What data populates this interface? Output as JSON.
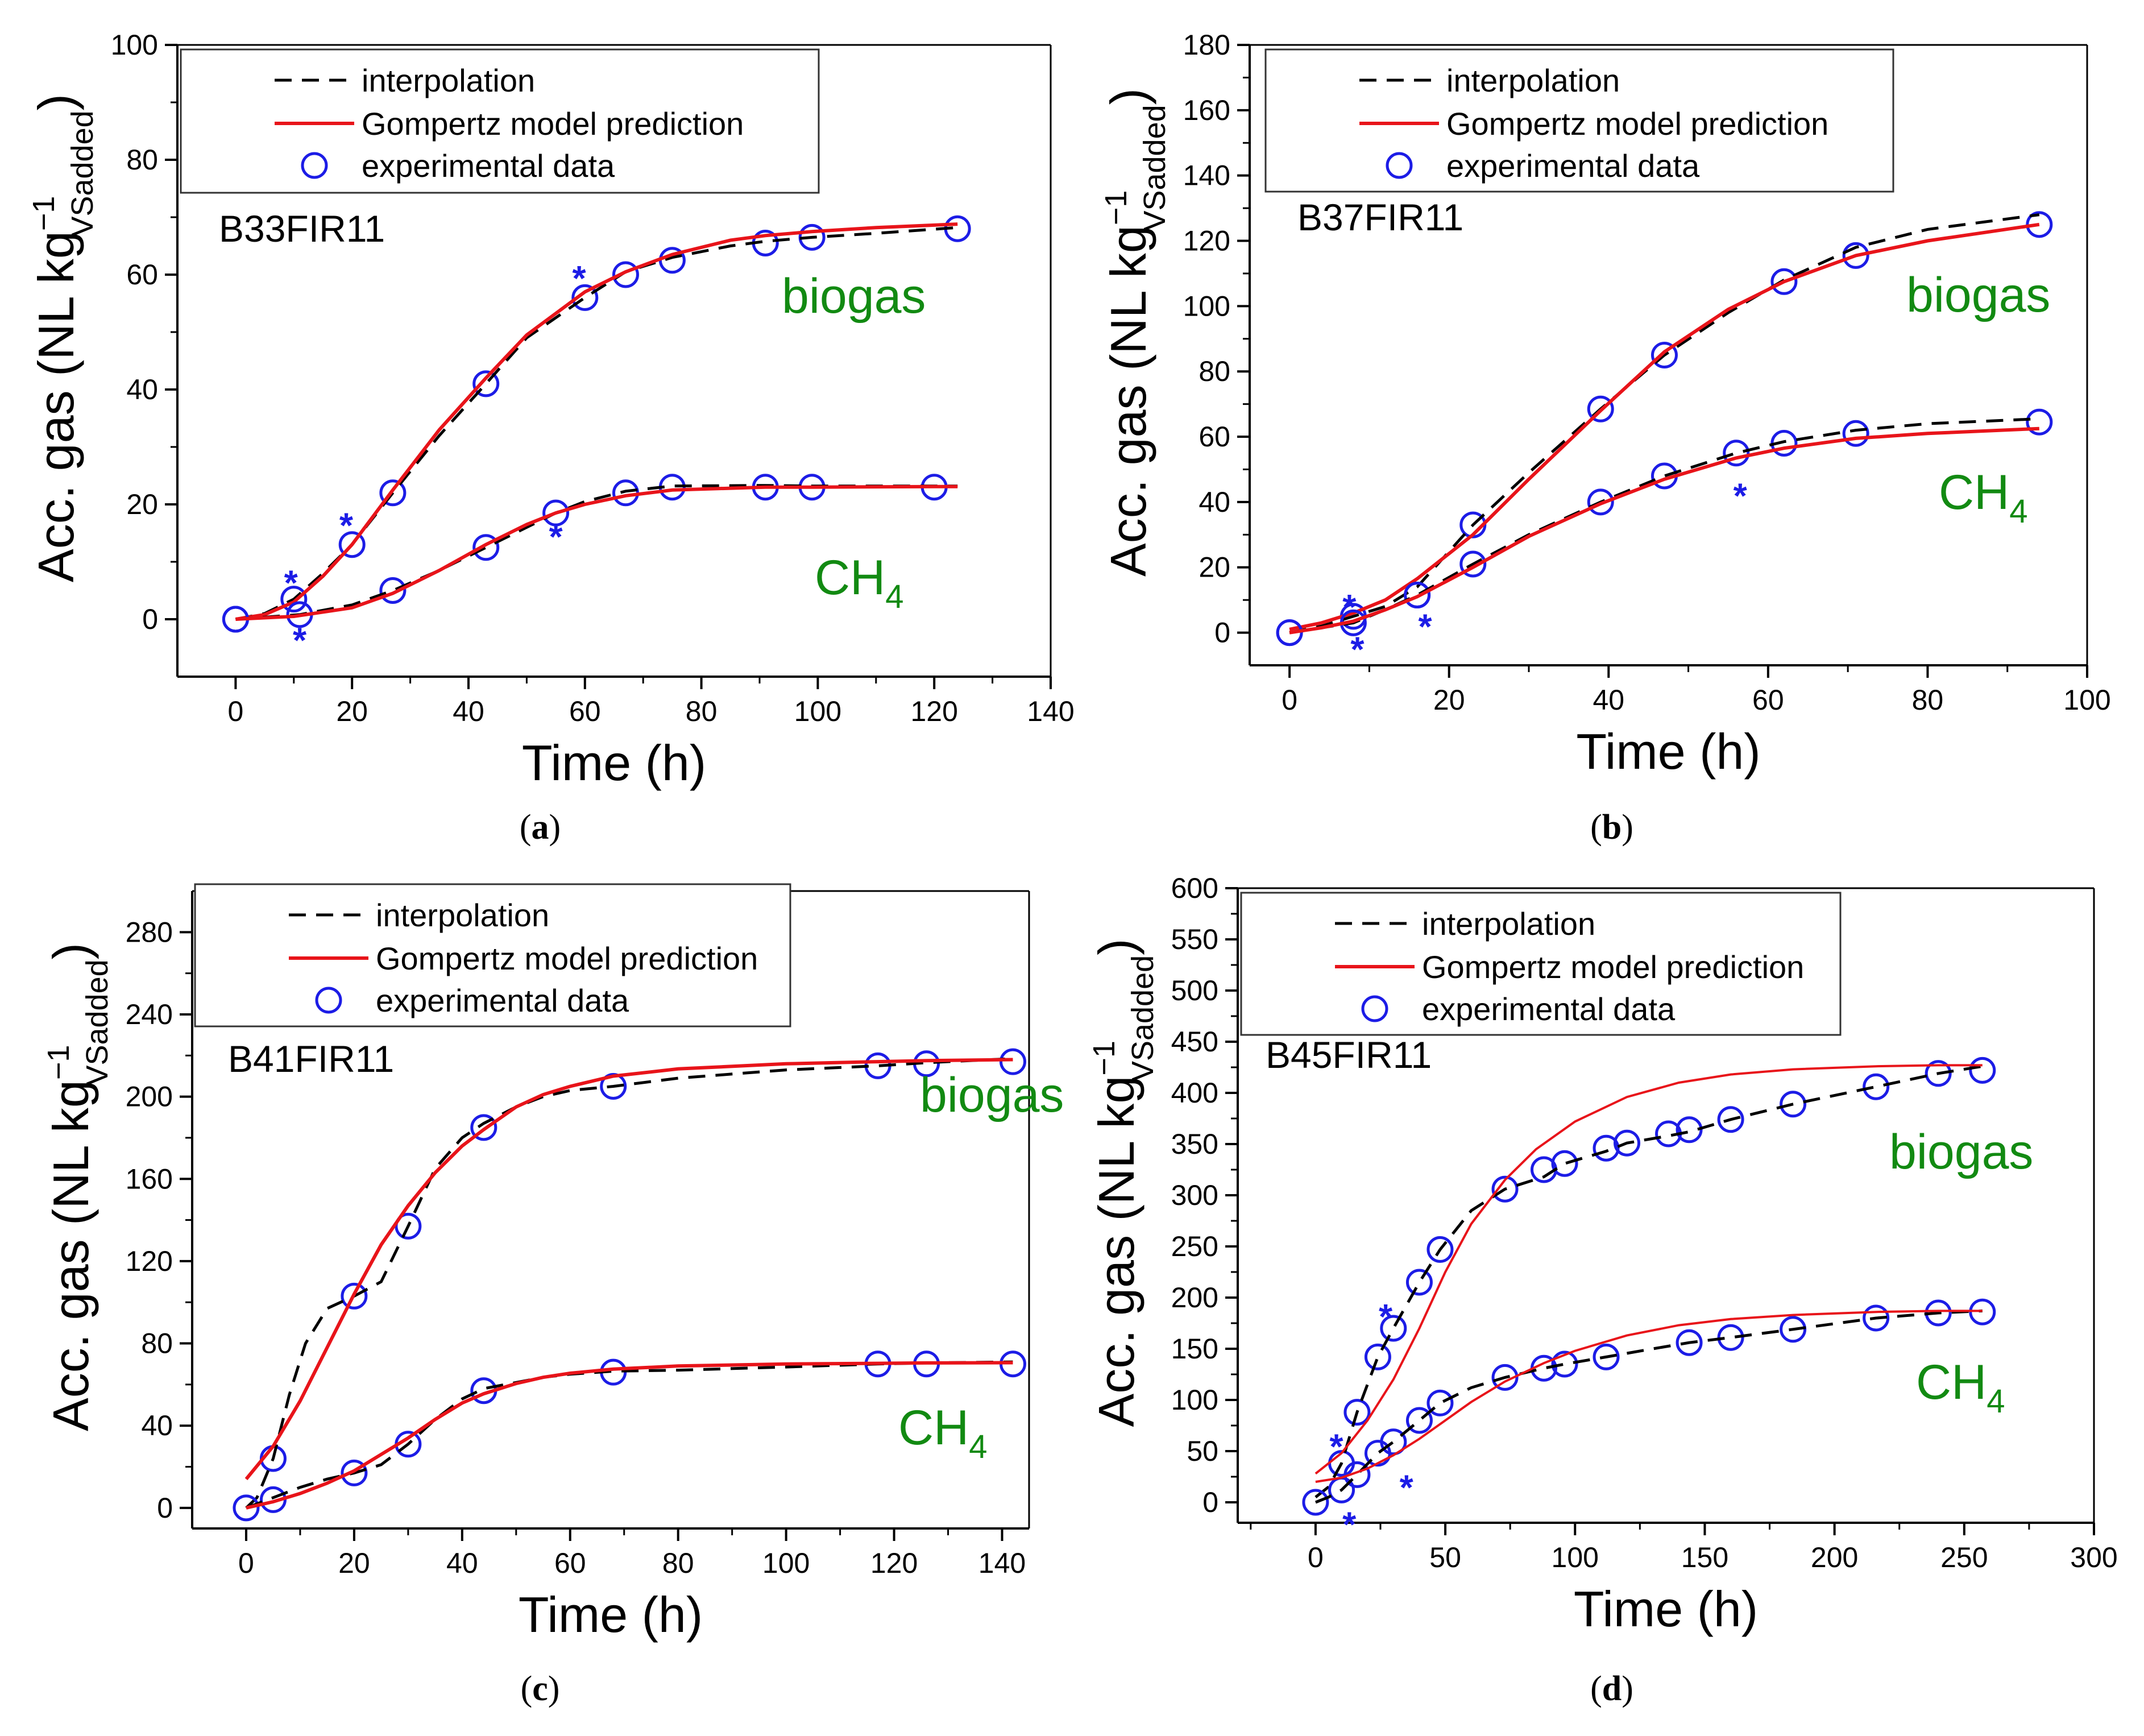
{
  "chart_data": [
    {
      "type": "line",
      "panel": "(a)",
      "panel_letter": "a",
      "sample": "B33FIR11",
      "xlabel": "Time (h)",
      "ylabel": "Acc. gas (NL kg",
      "ylabel_sup": "−1",
      "ylabel_sub": "VSadded",
      "xlim": [
        -10,
        140
      ],
      "ylim": [
        -10,
        100
      ],
      "xticks": [
        0,
        20,
        40,
        60,
        80,
        100,
        120,
        140
      ],
      "yticks": [
        0,
        20,
        40,
        60,
        80,
        100
      ],
      "legend": [
        "interpolation",
        "Gompertz model prediction",
        "experimental data"
      ],
      "annotations": {
        "biogas": "biogas",
        "ch4": "CH",
        "ch4_sub": "4"
      },
      "star_symbol": "*",
      "series": [
        {
          "name": "biogas experimental data",
          "x": [
            0,
            10,
            20,
            27,
            43,
            60,
            67,
            75,
            91,
            99,
            124
          ],
          "y": [
            0,
            3.5,
            13,
            22,
            41,
            56,
            60,
            62.5,
            65.5,
            66.5,
            68
          ]
        },
        {
          "name": "biogas interpolation",
          "x": [
            0,
            5,
            10,
            15,
            20,
            27,
            35,
            43,
            50,
            60,
            67,
            75,
            85,
            91,
            99,
            110,
            124
          ],
          "y": [
            0,
            1,
            3.5,
            8,
            13,
            22,
            32,
            41,
            49,
            56,
            60.5,
            63,
            65,
            65.8,
            66.5,
            67.2,
            68.2
          ]
        },
        {
          "name": "biogas Gompertz",
          "x": [
            0,
            5,
            10,
            15,
            20,
            27,
            35,
            43,
            50,
            60,
            67,
            75,
            85,
            91,
            99,
            110,
            124
          ],
          "y": [
            0,
            0.8,
            3,
            7.5,
            13,
            22.5,
            33,
            42,
            49.5,
            57,
            60.5,
            63.5,
            66,
            66.8,
            67.5,
            68.2,
            68.8
          ]
        },
        {
          "name": "CH4 experimental data",
          "x": [
            0,
            11,
            27,
            43,
            55,
            67,
            75,
            91,
            99,
            120
          ],
          "y": [
            0,
            0.8,
            5,
            12.5,
            18.5,
            22,
            23,
            23,
            23,
            23
          ]
        },
        {
          "name": "CH4 interpolation",
          "x": [
            0,
            11,
            20,
            27,
            35,
            43,
            50,
            55,
            60,
            67,
            75,
            91,
            99,
            120,
            124
          ],
          "y": [
            0,
            0.8,
            2.5,
            5,
            8.5,
            12.5,
            16,
            18.5,
            20.5,
            22.3,
            23.2,
            23.3,
            23.2,
            23.2,
            23.2
          ]
        },
        {
          "name": "CH4 Gompertz",
          "x": [
            0,
            10,
            20,
            27,
            35,
            43,
            50,
            55,
            60,
            67,
            75,
            91,
            99,
            120,
            124
          ],
          "y": [
            0,
            0.5,
            2,
            4.5,
            8.5,
            13,
            16.5,
            18.5,
            20,
            21.5,
            22.5,
            23,
            23,
            23.1,
            23.1
          ]
        }
      ],
      "stars": [
        {
          "x": 9.5,
          "y": 7
        },
        {
          "x": 11,
          "y": -3
        },
        {
          "x": 19,
          "y": 17
        },
        {
          "x": 59,
          "y": 60
        },
        {
          "x": 55,
          "y": 15
        }
      ]
    },
    {
      "type": "line",
      "panel": "(b)",
      "panel_letter": "b",
      "sample": "B37FIR11",
      "xlabel": "Time (h)",
      "ylabel": "Acc. gas (NL kg",
      "ylabel_sup": "−1",
      "ylabel_sub": "VSadded",
      "xlim": [
        -5,
        100
      ],
      "ylim": [
        -10,
        180
      ],
      "xticks": [
        0,
        20,
        40,
        60,
        80,
        100
      ],
      "yticks": [
        0,
        20,
        40,
        60,
        80,
        100,
        120,
        140,
        160,
        180
      ],
      "legend": [
        "interpolation",
        "Gompertz model prediction",
        "experimental data"
      ],
      "annotations": {
        "biogas": "biogas",
        "ch4": "CH",
        "ch4_sub": "4"
      },
      "star_symbol": "*",
      "series": [
        {
          "name": "biogas experimental data",
          "x": [
            0,
            8,
            16,
            23,
            39,
            47,
            62,
            71,
            94
          ],
          "y": [
            0,
            5,
            11.5,
            33,
            68.5,
            85,
            107.5,
            115.5,
            125
          ]
        },
        {
          "name": "biogas interpolation",
          "x": [
            0,
            4,
            8,
            12,
            16,
            23,
            30,
            39,
            47,
            55,
            62,
            71,
            80,
            94
          ],
          "y": [
            0,
            2,
            5,
            8,
            14,
            33,
            49,
            68.5,
            85,
            98,
            108,
            118,
            123.5,
            128
          ]
        },
        {
          "name": "biogas Gompertz",
          "x": [
            0,
            4,
            8,
            12,
            16,
            23,
            30,
            39,
            47,
            55,
            62,
            71,
            80,
            94
          ],
          "y": [
            1,
            3,
            6,
            10,
            16.5,
            30,
            47,
            68,
            86,
            99,
            107.5,
            115.5,
            120,
            125
          ]
        },
        {
          "name": "CH4 experimental data",
          "x": [
            0,
            8,
            16,
            23,
            39,
            47,
            56,
            62,
            71,
            94
          ],
          "y": [
            0,
            3,
            11.5,
            21,
            40,
            48,
            55,
            58,
            61,
            64.5
          ]
        },
        {
          "name": "CH4 interpolation",
          "x": [
            0,
            4,
            8,
            12,
            16,
            23,
            30,
            39,
            47,
            56,
            62,
            71,
            80,
            94
          ],
          "y": [
            0,
            1.5,
            3,
            7,
            11.5,
            21,
            30,
            40,
            48,
            55,
            58.5,
            62,
            64,
            65.5
          ]
        },
        {
          "name": "CH4 Gompertz",
          "x": [
            0,
            4,
            8,
            12,
            16,
            23,
            30,
            39,
            47,
            56,
            62,
            71,
            80,
            94
          ],
          "y": [
            0,
            1.5,
            3.5,
            7,
            11,
            20,
            29.5,
            39.5,
            47,
            53.5,
            56.5,
            59.5,
            61,
            62.5
          ]
        }
      ],
      "stars": [
        {
          "x": 7.5,
          "y": 9
        },
        {
          "x": 8.5,
          "y": -4
        },
        {
          "x": 17,
          "y": 3
        },
        {
          "x": 56.5,
          "y": 43
        }
      ]
    },
    {
      "type": "line",
      "panel": "(c)",
      "panel_letter": "c",
      "sample": "B41FIR11",
      "xlabel": "Time (h)",
      "ylabel": "Acc. gas (NL kg",
      "ylabel_sup": "−1",
      "ylabel_sub": "VSadded",
      "xlim": [
        -10,
        145
      ],
      "ylim": [
        -10,
        300
      ],
      "xticks": [
        0,
        20,
        40,
        60,
        80,
        100,
        120,
        140
      ],
      "yticks": [
        0,
        40,
        80,
        120,
        160,
        200,
        240,
        280
      ],
      "legend": [
        "interpolation",
        "Gompertz model prediction",
        "experimental data"
      ],
      "annotations": {
        "biogas": "biogas",
        "ch4": "CH",
        "ch4_sub": "4"
      },
      "star_symbol": "*",
      "series": [
        {
          "name": "biogas experimental data",
          "x": [
            5,
            20,
            30,
            44,
            68,
            117,
            126,
            142
          ],
          "y": [
            24,
            103,
            137,
            185,
            205,
            215,
            216,
            217
          ]
        },
        {
          "name": "biogas interpolation",
          "x": [
            0,
            2,
            5,
            8,
            11,
            15,
            20,
            25,
            30,
            35,
            40,
            44,
            50,
            55,
            60,
            68,
            80,
            100,
            117,
            126,
            142
          ],
          "y": [
            0,
            5,
            24,
            55,
            80,
            97,
            103,
            110,
            137,
            165,
            180,
            187,
            195,
            200,
            203,
            205,
            209,
            213,
            215,
            216.5,
            218.5
          ]
        },
        {
          "name": "biogas Gompertz",
          "x": [
            0,
            5,
            10,
            15,
            20,
            25,
            30,
            35,
            40,
            44,
            50,
            55,
            60,
            68,
            80,
            100,
            117,
            126,
            142
          ],
          "y": [
            14,
            30,
            52,
            78,
            104,
            128,
            147,
            163,
            176,
            184,
            195,
            201,
            205,
            210,
            213.5,
            216,
            217,
            217.5,
            218
          ]
        },
        {
          "name": "CH4 experimental data",
          "x": [
            0,
            5,
            20,
            30,
            44,
            68,
            117,
            126,
            142
          ],
          "y": [
            0,
            4,
            17,
            31,
            57,
            66,
            70,
            70,
            70
          ]
        },
        {
          "name": "CH4 interpolation",
          "x": [
            0,
            5,
            10,
            15,
            20,
            25,
            30,
            35,
            40,
            44,
            50,
            55,
            60,
            68,
            80,
            100,
            117,
            126,
            142
          ],
          "y": [
            0,
            5,
            10,
            14,
            17,
            21,
            31,
            43,
            53,
            58,
            61,
            63.5,
            65,
            66.5,
            67,
            68.5,
            70,
            70.5,
            71
          ]
        },
        {
          "name": "CH4 Gompertz",
          "x": [
            0,
            5,
            10,
            15,
            20,
            25,
            30,
            35,
            40,
            44,
            50,
            55,
            60,
            68,
            80,
            100,
            117,
            126,
            142
          ],
          "y": [
            0,
            3,
            7,
            12,
            18,
            26,
            34,
            43,
            51,
            55.5,
            60.5,
            63.5,
            65.5,
            67.5,
            69,
            70,
            70.3,
            70.5,
            70.6
          ]
        }
      ],
      "stars": []
    },
    {
      "type": "line",
      "panel": "(d)",
      "panel_letter": "d",
      "sample": "B45FIR11",
      "xlabel": "Time (h)",
      "ylabel": "Acc. gas (NL kg",
      "ylabel_sup": "−1",
      "ylabel_sub": "VSadded",
      "xlim": [
        -30,
        300
      ],
      "ylim": [
        -20,
        600
      ],
      "xticks": [
        0,
        50,
        100,
        150,
        200,
        250,
        300
      ],
      "yticks": [
        0,
        50,
        100,
        150,
        200,
        250,
        300,
        350,
        400,
        450,
        500,
        550,
        600
      ],
      "legend": [
        "interpolation",
        "Gompertz model prediction",
        "experimental data"
      ],
      "annotations": {
        "biogas": "biogas",
        "ch4": "CH",
        "ch4_sub": "4"
      },
      "star_symbol": "*",
      "series": [
        {
          "name": "biogas experimental data",
          "x": [
            10,
            16,
            24,
            30,
            40,
            48,
            73,
            88,
            96,
            112,
            120,
            136,
            144,
            160,
            184,
            216,
            240,
            257
          ],
          "y": [
            38,
            88,
            142,
            170,
            215,
            247,
            306,
            325,
            331,
            346,
            351,
            360,
            364,
            374,
            389,
            406,
            419,
            422
          ]
        },
        {
          "name": "biogas interpolation",
          "x": [
            0,
            5,
            10,
            16,
            24,
            30,
            40,
            48,
            60,
            73,
            88,
            96,
            112,
            120,
            136,
            144,
            160,
            184,
            216,
            240,
            257
          ],
          "y": [
            5,
            15,
            38,
            88,
            142,
            170,
            215,
            247,
            285,
            306,
            318,
            331,
            343,
            351,
            358,
            362,
            374,
            389,
            406,
            419,
            426
          ]
        },
        {
          "name": "biogas Gompertz",
          "x": [
            0,
            10,
            20,
            30,
            40,
            50,
            60,
            73,
            85,
            100,
            120,
            140,
            160,
            184,
            216,
            240,
            257
          ],
          "y": [
            28,
            48,
            80,
            120,
            170,
            225,
            272,
            315,
            345,
            372,
            396,
            410,
            418,
            423,
            426,
            427,
            427
          ]
        },
        {
          "name": "CH4 experimental data",
          "x": [
            0,
            10,
            16,
            24,
            30,
            40,
            48,
            73,
            88,
            96,
            112,
            144,
            160,
            184,
            216,
            240,
            257
          ],
          "y": [
            0,
            12,
            27,
            48,
            59,
            80,
            97,
            122,
            131,
            135,
            142,
            156,
            161,
            169,
            180,
            185,
            186
          ]
        },
        {
          "name": "CH4 interpolation",
          "x": [
            0,
            5,
            10,
            16,
            24,
            30,
            40,
            48,
            60,
            73,
            88,
            96,
            112,
            130,
            144,
            160,
            184,
            216,
            240,
            257
          ],
          "y": [
            0,
            5,
            12,
            27,
            48,
            59,
            80,
            97,
            112,
            122,
            131,
            135,
            142,
            150,
            156,
            161,
            169,
            180,
            185,
            187
          ]
        },
        {
          "name": "CH4 Gompertz",
          "x": [
            0,
            10,
            20,
            30,
            40,
            50,
            60,
            73,
            88,
            100,
            120,
            140,
            160,
            184,
            216,
            240,
            257
          ],
          "y": [
            20,
            24,
            33,
            46,
            62,
            80,
            98,
            118,
            136,
            148,
            163,
            173,
            179,
            183,
            186,
            187,
            187
          ]
        }
      ],
      "stars": [
        {
          "x": 8,
          "y": 58
        },
        {
          "x": 13,
          "y": -18
        },
        {
          "x": 27,
          "y": 185
        },
        {
          "x": 35,
          "y": 18
        }
      ]
    }
  ],
  "colors": {
    "interpolation": "#000000",
    "gompertz": "#e8141a",
    "experimental": "#1c1ce6",
    "annotation": "#128a12",
    "axis": "#000000"
  }
}
